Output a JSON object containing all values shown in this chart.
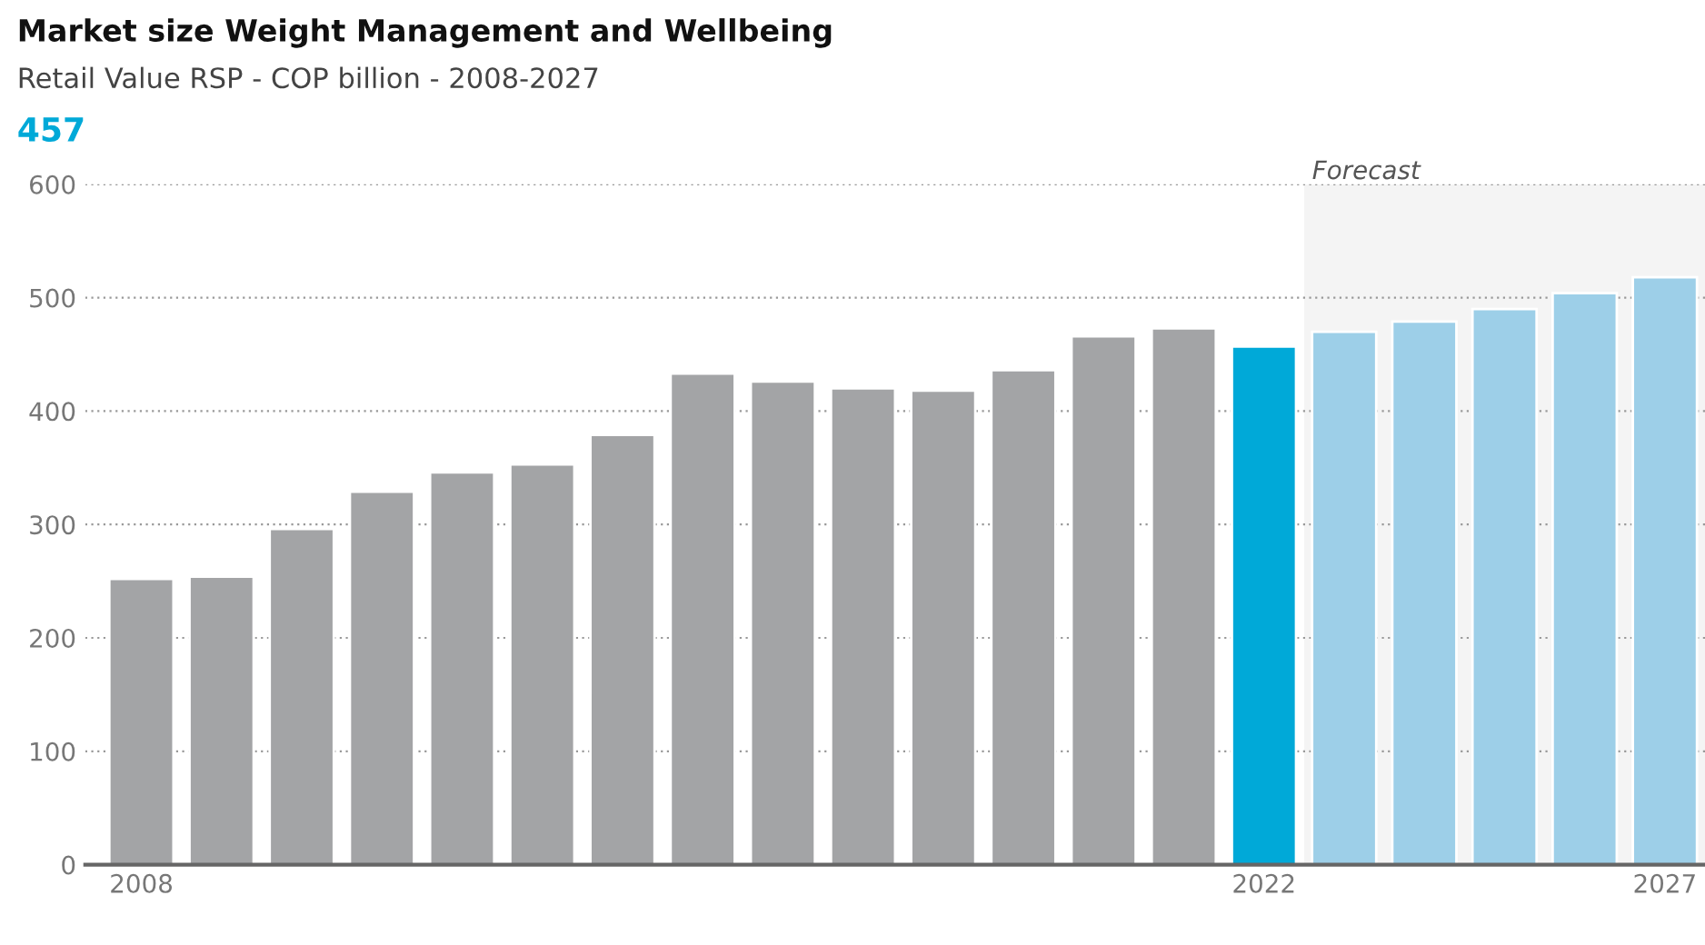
{
  "chart_data": {
    "type": "bar",
    "title": "Market size Weight Management and Wellbeing",
    "subtitle": "Retail Value RSP - COP billion - 2008-2027",
    "annotations": [
      "457"
    ],
    "categories": [
      "2008",
      null,
      null,
      null,
      null,
      null,
      null,
      null,
      null,
      null,
      null,
      null,
      null,
      null,
      "2022",
      null,
      null,
      null,
      null,
      "2027"
    ],
    "values": [
      252,
      254,
      296,
      329,
      346,
      353,
      379,
      433,
      426,
      420,
      418,
      436,
      466,
      473,
      457,
      470,
      479,
      490,
      504,
      518
    ],
    "colors": [
      "#a3a4a6",
      "#a3a4a6",
      "#a3a4a6",
      "#a3a4a6",
      "#a3a4a6",
      "#a3a4a6",
      "#a3a4a6",
      "#a3a4a6",
      "#a3a4a6",
      "#a3a4a6",
      "#a3a4a6",
      "#a3a4a6",
      "#a3a4a6",
      "#a3a4a6",
      "#00a9d8",
      "#9dcfe8",
      "#9dcfe8",
      "#9dcfe8",
      "#9dcfe8",
      "#9dcfe8"
    ],
    "bands": [
      {
        "axis": "x",
        "from": "2022",
        "to": "2027",
        "label": "Forecast",
        "color": "#f4f4f4"
      }
    ],
    "ylim": [
      0,
      600
    ],
    "yticks": [
      0,
      100,
      200,
      300,
      400,
      500,
      600
    ],
    "grid": "y"
  }
}
